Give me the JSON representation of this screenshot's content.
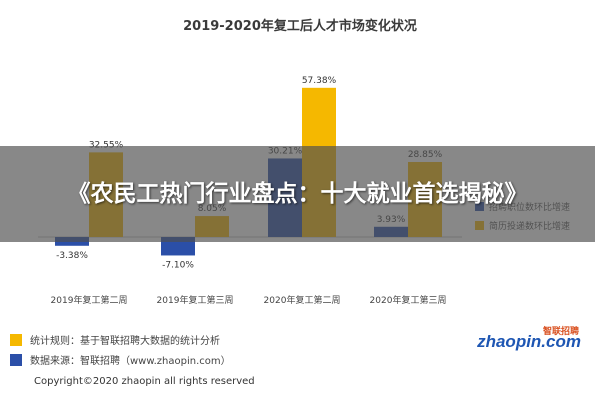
{
  "banner": {
    "title": "《农民工热门行业盘点：十大就业首选揭秘》"
  },
  "chart_data": {
    "type": "bar",
    "title": "2019-2020年复工后人才市场变化状况",
    "categories": [
      "2019年复工第二周",
      "2019年复工第三周",
      "2020年复工第二周",
      "2020年复工第三周"
    ],
    "series": [
      {
        "name": "招聘职位数环比增速",
        "color": "#2b4fa8",
        "values": [
          -3.38,
          -7.1,
          30.21,
          3.93
        ],
        "labels": [
          "-3.38%",
          "-7.10%",
          "30.21%",
          "3.93%"
        ]
      },
      {
        "name": "简历投递数环比增速",
        "color": "#f5b800",
        "values": [
          32.55,
          8.05,
          57.38,
          28.85
        ],
        "labels": [
          "32.55%",
          "8.05%",
          "57.38%",
          "28.85%"
        ]
      }
    ],
    "ylim": [
      -10,
      60
    ],
    "grid": false,
    "legend_position": "right"
  },
  "notes": {
    "rule": "统计规则：基于智联招聘大数据的统计分析",
    "source": "数据来源：智联招聘（www.zhaopin.com）",
    "rule_color": "#f5b800",
    "source_color": "#2b4fa8"
  },
  "copyright": "Copyright©2020 zhaopin all rights reserved",
  "logo": {
    "main": "zhaopin.com",
    "sub": "智联招聘"
  }
}
